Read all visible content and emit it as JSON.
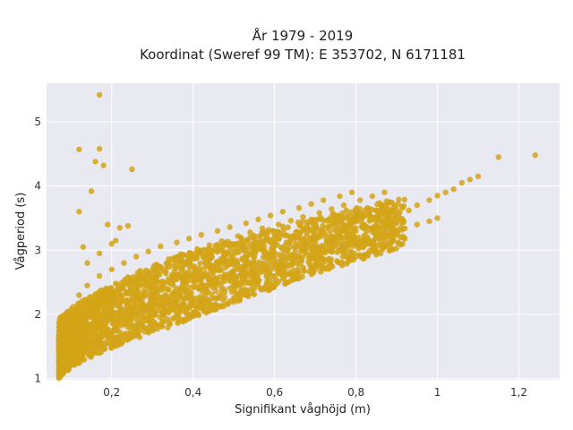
{
  "chart_data": {
    "type": "scatter",
    "title_line1": "År 1979 - 2019",
    "title_line2": "Koordinat (Sweref 99 TM): E 353702, N 6171181",
    "xlabel": "Signifikant våghöjd (m)",
    "ylabel": "Vågperiod (s)",
    "xlim": [
      0.04,
      1.3
    ],
    "ylim": [
      0.98,
      5.6
    ],
    "x_ticks": [
      0.2,
      0.4,
      0.6,
      0.8,
      1.0,
      1.2
    ],
    "x_tick_labels": [
      "0,2",
      "0,4",
      "0,6",
      "0,8",
      "1",
      "1,2"
    ],
    "y_ticks": [
      1,
      2,
      3,
      4,
      5
    ],
    "y_tick_labels": [
      "1",
      "2",
      "3",
      "4",
      "5"
    ],
    "grid": true,
    "background_color": "#e9e9f1",
    "marker_color": "#d4a418",
    "series": [
      {
        "x": [
          0.07,
          0.08,
          0.09,
          0.1,
          0.11,
          0.12,
          0.13,
          0.14,
          0.15,
          0.16,
          0.18,
          0.2,
          0.22,
          0.25,
          0.28,
          0.3,
          0.33,
          0.35,
          0.38,
          0.4,
          0.43,
          0.45,
          0.48,
          0.5,
          0.53,
          0.55,
          0.58,
          0.6,
          0.63,
          0.65,
          0.68,
          0.7,
          0.73,
          0.75,
          0.78,
          0.8,
          0.83,
          0.85,
          0.88,
          0.9,
          0.93,
          0.95,
          0.98,
          1.0,
          1.02,
          1.04,
          1.06,
          1.08,
          1.1,
          1.15,
          1.24,
          0.1,
          0.12,
          0.14,
          0.16,
          0.18,
          0.2,
          0.22,
          0.25,
          0.28,
          0.3,
          0.32,
          0.35,
          0.38,
          0.4,
          0.42,
          0.45,
          0.48,
          0.5,
          0.52,
          0.55,
          0.58,
          0.6,
          0.62,
          0.65,
          0.68,
          0.7,
          0.72,
          0.75,
          0.78,
          0.8,
          0.82,
          0.85,
          0.88,
          0.9,
          0.92,
          0.95,
          0.98,
          1.0,
          0.11,
          0.13,
          0.15,
          0.17,
          0.19,
          0.21,
          0.24,
          0.27,
          0.31,
          0.34,
          0.37,
          0.41,
          0.44,
          0.47,
          0.51,
          0.54,
          0.57,
          0.61,
          0.64,
          0.67,
          0.71,
          0.74,
          0.77,
          0.81,
          0.84,
          0.87,
          0.12,
          0.14,
          0.17,
          0.2,
          0.23,
          0.26,
          0.29,
          0.32,
          0.36,
          0.39,
          0.42,
          0.46,
          0.49,
          0.53,
          0.56,
          0.59,
          0.62,
          0.66,
          0.69,
          0.72,
          0.76,
          0.79,
          0.17,
          0.12,
          0.17,
          0.16,
          0.18,
          0.1,
          0.15,
          0.25,
          0.12,
          0.2,
          0.22,
          0.13,
          0.17,
          0.19,
          0.14,
          0.21,
          0.24
        ],
        "y": [
          1.45,
          1.5,
          1.55,
          1.6,
          1.65,
          1.7,
          1.75,
          1.8,
          1.85,
          1.9,
          1.98,
          2.05,
          2.12,
          2.2,
          2.28,
          2.34,
          2.4,
          2.46,
          2.52,
          2.58,
          2.64,
          2.68,
          2.73,
          2.78,
          2.83,
          2.88,
          2.92,
          2.96,
          3.0,
          3.04,
          3.08,
          3.12,
          3.16,
          3.2,
          3.25,
          3.3,
          3.35,
          3.4,
          3.48,
          3.55,
          3.62,
          3.7,
          3.78,
          3.85,
          3.9,
          3.95,
          4.05,
          4.1,
          4.15,
          4.45,
          4.48,
          1.3,
          1.45,
          1.6,
          1.72,
          1.82,
          1.92,
          2.0,
          2.08,
          2.14,
          2.2,
          2.26,
          2.32,
          2.38,
          2.43,
          2.48,
          2.53,
          2.58,
          2.62,
          2.66,
          2.7,
          2.75,
          2.8,
          2.84,
          2.88,
          2.93,
          2.97,
          3.02,
          3.06,
          3.1,
          3.14,
          3.18,
          3.22,
          3.26,
          3.3,
          3.34,
          3.4,
          3.45,
          3.5,
          1.7,
          1.9,
          2.1,
          2.25,
          2.38,
          2.48,
          2.58,
          2.68,
          2.78,
          2.86,
          2.94,
          3.02,
          3.08,
          3.14,
          3.22,
          3.28,
          3.34,
          3.4,
          3.46,
          3.52,
          3.58,
          3.64,
          3.7,
          3.78,
          3.84,
          3.9,
          2.3,
          2.45,
          2.6,
          2.7,
          2.8,
          2.9,
          2.98,
          3.06,
          3.12,
          3.18,
          3.24,
          3.3,
          3.36,
          3.42,
          3.48,
          3.54,
          3.6,
          3.66,
          3.72,
          3.78,
          3.84,
          3.9,
          5.42,
          4.57,
          4.58,
          4.38,
          4.32,
          1.22,
          3.92,
          4.26,
          3.6,
          3.1,
          3.35,
          3.05,
          2.95,
          3.4,
          2.8,
          3.15,
          3.38
        ]
      }
    ]
  }
}
